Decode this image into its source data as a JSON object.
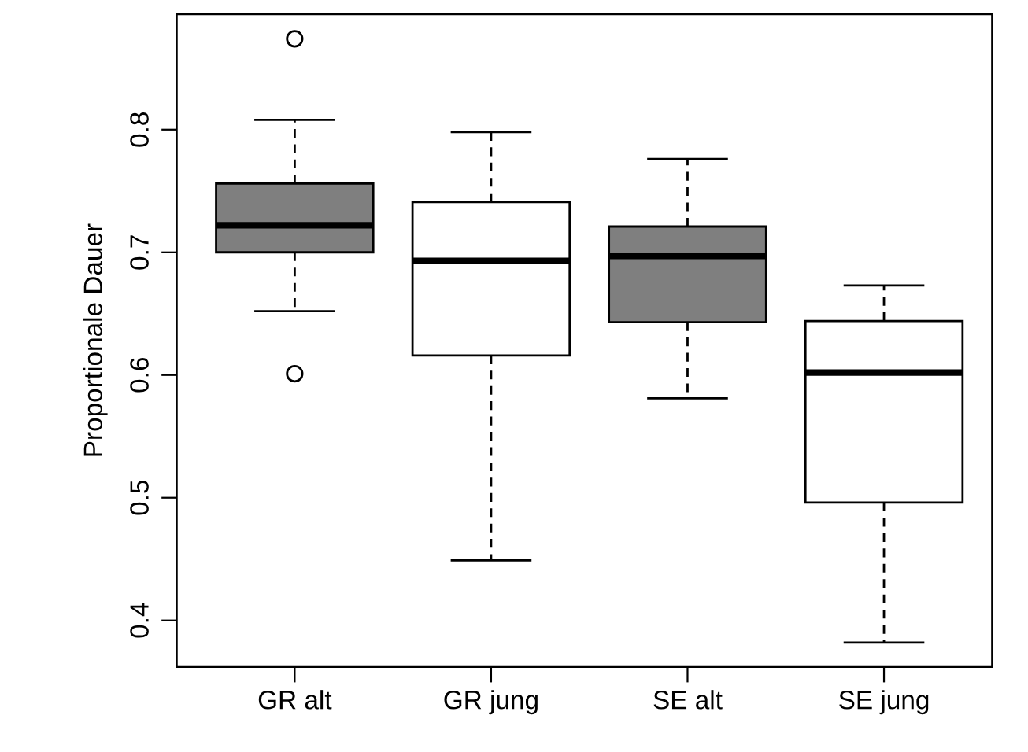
{
  "chart_data": {
    "type": "box",
    "ylabel": "Proportionale Dauer",
    "categories": [
      "GR alt",
      "GR jung",
      "SE alt",
      "SE jung"
    ],
    "boxes": [
      {
        "low": 0.652,
        "q1": 0.7,
        "median": 0.722,
        "q3": 0.756,
        "high": 0.808,
        "outliers": [
          0.874,
          0.601
        ]
      },
      {
        "low": 0.449,
        "q1": 0.616,
        "median": 0.693,
        "q3": 0.741,
        "high": 0.798
      },
      {
        "low": 0.581,
        "q1": 0.643,
        "median": 0.697,
        "q3": 0.721,
        "high": 0.776
      },
      {
        "low": 0.382,
        "q1": 0.496,
        "median": 0.602,
        "q3": 0.644,
        "high": 0.673
      }
    ],
    "colors": [
      "#7f7f7f",
      "#ffffff",
      "#7f7f7f",
      "#ffffff"
    ],
    "ylim": [
      0.362,
      0.894
    ],
    "yticks": [
      0.4,
      0.5,
      0.6,
      0.7,
      0.8
    ],
    "grid": false,
    "legend": false
  }
}
